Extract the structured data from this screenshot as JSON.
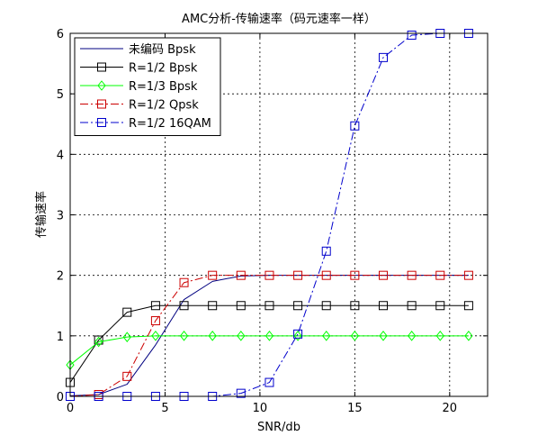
{
  "chart_data": {
    "type": "line",
    "title": "AMC分析-传输速率（码元速率一样）",
    "xlabel": "SNR/db",
    "ylabel": "传输速率",
    "xlim": [
      0,
      22
    ],
    "ylim": [
      0,
      6
    ],
    "xticks": [
      0,
      5,
      10,
      15,
      20
    ],
    "yticks": [
      0,
      1,
      2,
      3,
      4,
      5,
      6
    ],
    "grid": true,
    "legend_position": "top-left",
    "series": [
      {
        "name": "未编码 Bpsk",
        "color": "#000080",
        "line": "solid",
        "marker": "none",
        "x": [
          0,
          1.5,
          3,
          4.5,
          6,
          7.5,
          9,
          10.5,
          12,
          13.5,
          15,
          16.5,
          18,
          19.5,
          21
        ],
        "values": [
          0.01,
          0.03,
          0.2,
          0.85,
          1.6,
          1.9,
          1.99,
          2,
          2,
          2,
          2,
          2,
          2,
          2,
          2
        ]
      },
      {
        "name": "R=1/2 Bpsk",
        "color": "#000000",
        "line": "solid",
        "marker": "square",
        "x": [
          0,
          1.5,
          3,
          4.5,
          6,
          7.5,
          9,
          10.5,
          12,
          13.5,
          15,
          16.5,
          18,
          19.5,
          21
        ],
        "values": [
          0.23,
          0.93,
          1.39,
          1.5,
          1.5,
          1.5,
          1.5,
          1.5,
          1.5,
          1.5,
          1.5,
          1.5,
          1.5,
          1.5,
          1.5
        ]
      },
      {
        "name": "R=1/3 Bpsk",
        "color": "#00ff00",
        "line": "solid",
        "marker": "diamond",
        "x": [
          0,
          1.5,
          3,
          4.5,
          6,
          7.5,
          9,
          10.5,
          12,
          13.5,
          15,
          16.5,
          18,
          19.5,
          21
        ],
        "values": [
          0.52,
          0.9,
          0.98,
          1,
          1,
          1,
          1,
          1,
          1,
          1,
          1,
          1,
          1,
          1,
          1
        ]
      },
      {
        "name": "R=1/2 Qpsk",
        "color": "#cc0000",
        "line": "dashdot",
        "marker": "square",
        "x": [
          0,
          1.5,
          3,
          4.5,
          6,
          7.5,
          9,
          10.5,
          12,
          13.5,
          15,
          16.5,
          18,
          19.5,
          21
        ],
        "values": [
          0,
          0.03,
          0.33,
          1.25,
          1.88,
          2,
          2,
          2,
          2,
          2,
          2,
          2,
          2,
          2,
          2
        ]
      },
      {
        "name": "R=1/2 16QAM",
        "color": "#0000cc",
        "line": "dashdot",
        "marker": "square",
        "x": [
          0,
          1.5,
          3,
          4.5,
          6,
          7.5,
          9,
          10.5,
          12,
          13.5,
          15,
          16.5,
          18,
          19.5,
          21
        ],
        "values": [
          0,
          0,
          0,
          0,
          0,
          0,
          0.05,
          0.23,
          1.03,
          2.4,
          4.47,
          5.6,
          5.97,
          6,
          6
        ]
      }
    ]
  }
}
